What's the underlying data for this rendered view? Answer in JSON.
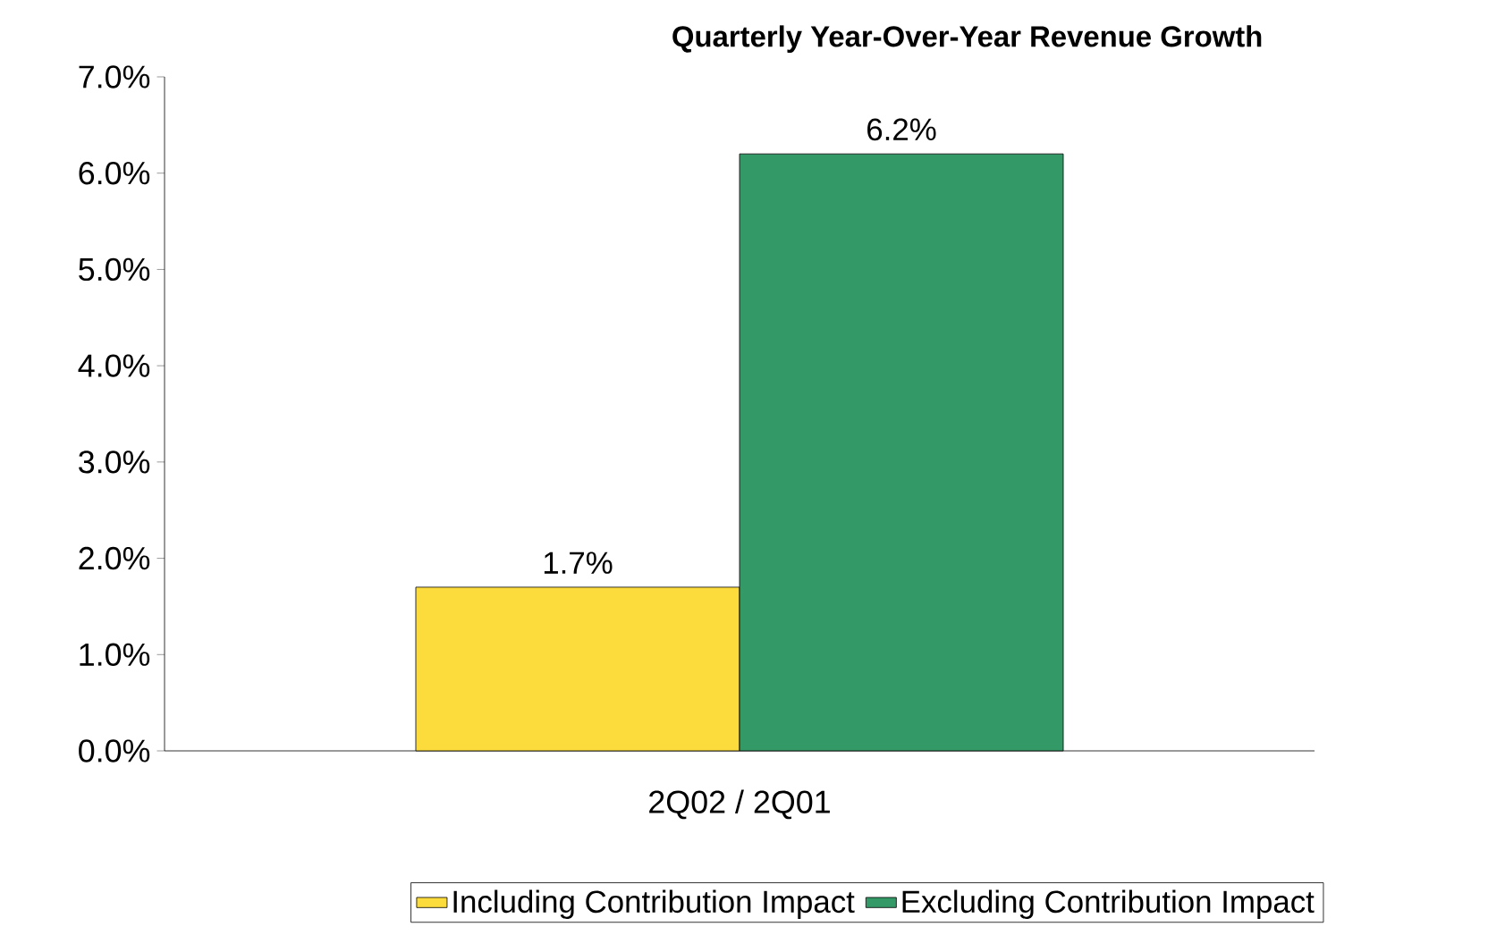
{
  "chart_data": {
    "type": "bar",
    "title": "Quarterly Year-Over-Year Revenue Growth",
    "categories": [
      "2Q02 / 2Q01"
    ],
    "series": [
      {
        "name": "Including Contribution Impact",
        "color": "#fcdc3c",
        "values": [
          1.7
        ],
        "value_labels": [
          "1.7%"
        ]
      },
      {
        "name": "Excluding Contribution Impact",
        "color": "#339966",
        "values": [
          6.2
        ],
        "value_labels": [
          "6.2%"
        ]
      }
    ],
    "ylim": [
      0,
      7
    ],
    "yticks": [
      {
        "value": 0,
        "label": "0.0%"
      },
      {
        "value": 1,
        "label": "1.0%"
      },
      {
        "value": 2,
        "label": "2.0%"
      },
      {
        "value": 3,
        "label": "3.0%"
      },
      {
        "value": 4,
        "label": "4.0%"
      },
      {
        "value": 5,
        "label": "5.0%"
      },
      {
        "value": 6,
        "label": "6.0%"
      },
      {
        "value": 7,
        "label": "7.0%"
      }
    ],
    "grid": false,
    "legend": "bottom"
  }
}
